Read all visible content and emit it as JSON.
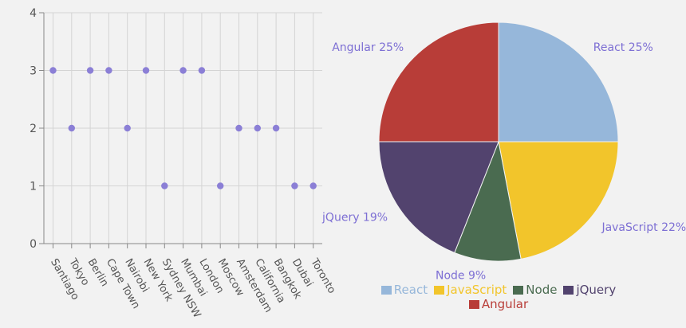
{
  "chart_data": [
    {
      "type": "scatter",
      "title": "",
      "xlabel": "",
      "ylabel": "",
      "categories": [
        "Santiago",
        "Tokyo",
        "Berlin",
        "Cape Town",
        "Nairobi",
        "New York",
        "Sydney NSW",
        "Mumbai",
        "London",
        "Moscow",
        "Amsterdam",
        "California",
        "Bangkok",
        "Dubai",
        "Toronto"
      ],
      "values": [
        3,
        2,
        3,
        3,
        2,
        3,
        1,
        3,
        3,
        1,
        2,
        2,
        2,
        1,
        1
      ],
      "ylim": [
        0,
        4
      ],
      "yticks": [
        "0",
        "1",
        "2",
        "3",
        "4"
      ],
      "grid": true,
      "point_color": "#8b7fd6"
    },
    {
      "type": "pie",
      "slices": [
        {
          "label": "React",
          "value": 25,
          "display": "React 25%",
          "color": "#96b7da"
        },
        {
          "label": "JavaScript",
          "value": 22,
          "display": "JavaScript 22%",
          "color": "#f2c52b"
        },
        {
          "label": "Node",
          "value": 9,
          "display": "Node 9%",
          "color": "#4a6b50"
        },
        {
          "label": "jQuery",
          "value": 19,
          "display": "jQuery 19%",
          "color": "#52436e"
        },
        {
          "label": "Angular",
          "value": 25,
          "display": "Angular 25%",
          "color": "#b83d38"
        }
      ],
      "legend_position": "bottom",
      "label_color": "#7d6fd4"
    }
  ],
  "legend": {
    "items": [
      {
        "label": "React",
        "color": "#96b7da",
        "text_color": "#96b7da"
      },
      {
        "label": "JavaScript",
        "color": "#f2c52b",
        "text_color": "#f2c52b"
      },
      {
        "label": "Node",
        "color": "#4a6b50",
        "text_color": "#4a6b50"
      },
      {
        "label": "jQuery",
        "color": "#52436e",
        "text_color": "#52436e"
      },
      {
        "label": "Angular",
        "color": "#b83d38",
        "text_color": "#b83d38"
      }
    ]
  }
}
